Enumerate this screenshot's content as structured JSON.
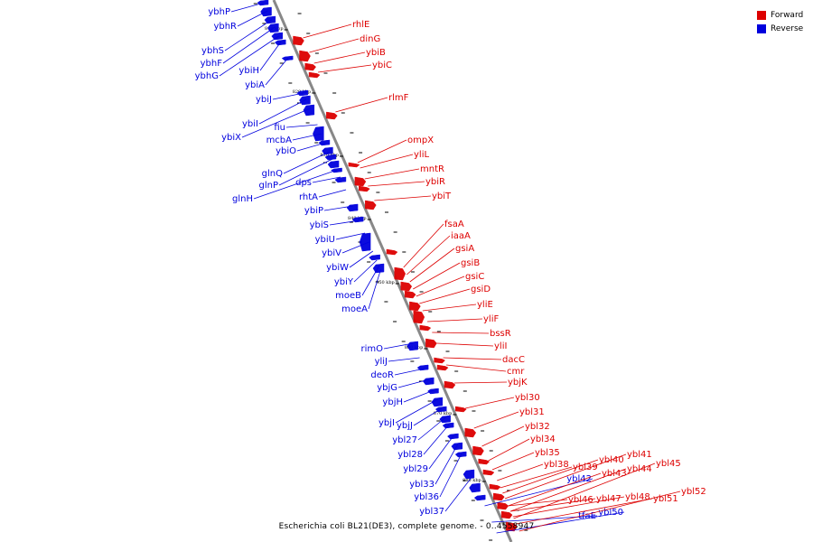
{
  "legend": {
    "forward": "Forward",
    "reverse": "Reverse",
    "forward_color": "#dd0000",
    "reverse_color": "#0000dd"
  },
  "caption": "Escherichia coli BL21(DE3), complete genome. - 0..4558947",
  "ticks": [
    "810 kbp",
    "820 kbp",
    "830 kbp",
    "840 kbp",
    "850 kbp",
    "860 kbp",
    "870 kbp",
    "880 kbp"
  ],
  "reverse_genes": [
    "ybhP",
    "ybhR",
    "ybhS",
    "ybhF",
    "ybhG",
    "ybiH",
    "ybiA",
    "ybiJ",
    "ybiI",
    "ybiX",
    "fiu",
    "mcbA",
    "ybiO",
    "glnQ",
    "glnP",
    "glnH",
    "dps",
    "rhtA",
    "ybiP",
    "ybiS",
    "ybiU",
    "ybiV",
    "ybiW",
    "ybiY",
    "moeB",
    "moeA",
    "rimO",
    "yliJ",
    "deoR",
    "ybjG",
    "ybjH",
    "ybjI",
    "ybjJ",
    "ybl27",
    "ybl28",
    "ybl29",
    "ybl33",
    "ybl36",
    "ybl37",
    "ybl42",
    "tfaE",
    "ybl50"
  ],
  "forward_genes": [
    "rhlE",
    "dinG",
    "ybiB",
    "ybiC",
    "rlmF",
    "ompX",
    "yliL",
    "mntR",
    "ybiR",
    "ybiT",
    "fsaA",
    "iaaA",
    "gsiA",
    "gsiB",
    "gsiC",
    "gsiD",
    "yliE",
    "yliF",
    "bssR",
    "yliI",
    "dacC",
    "cmr",
    "ybjK",
    "ybl30",
    "ybl31",
    "ybl32",
    "ybl34",
    "ybl35",
    "ybl38",
    "ybl39",
    "ybl40",
    "ybl41",
    "ybl43",
    "ybl44",
    "ybl45",
    "ybl46",
    "ybl47",
    "ybl48",
    "ybl51",
    "ybl52"
  ]
}
